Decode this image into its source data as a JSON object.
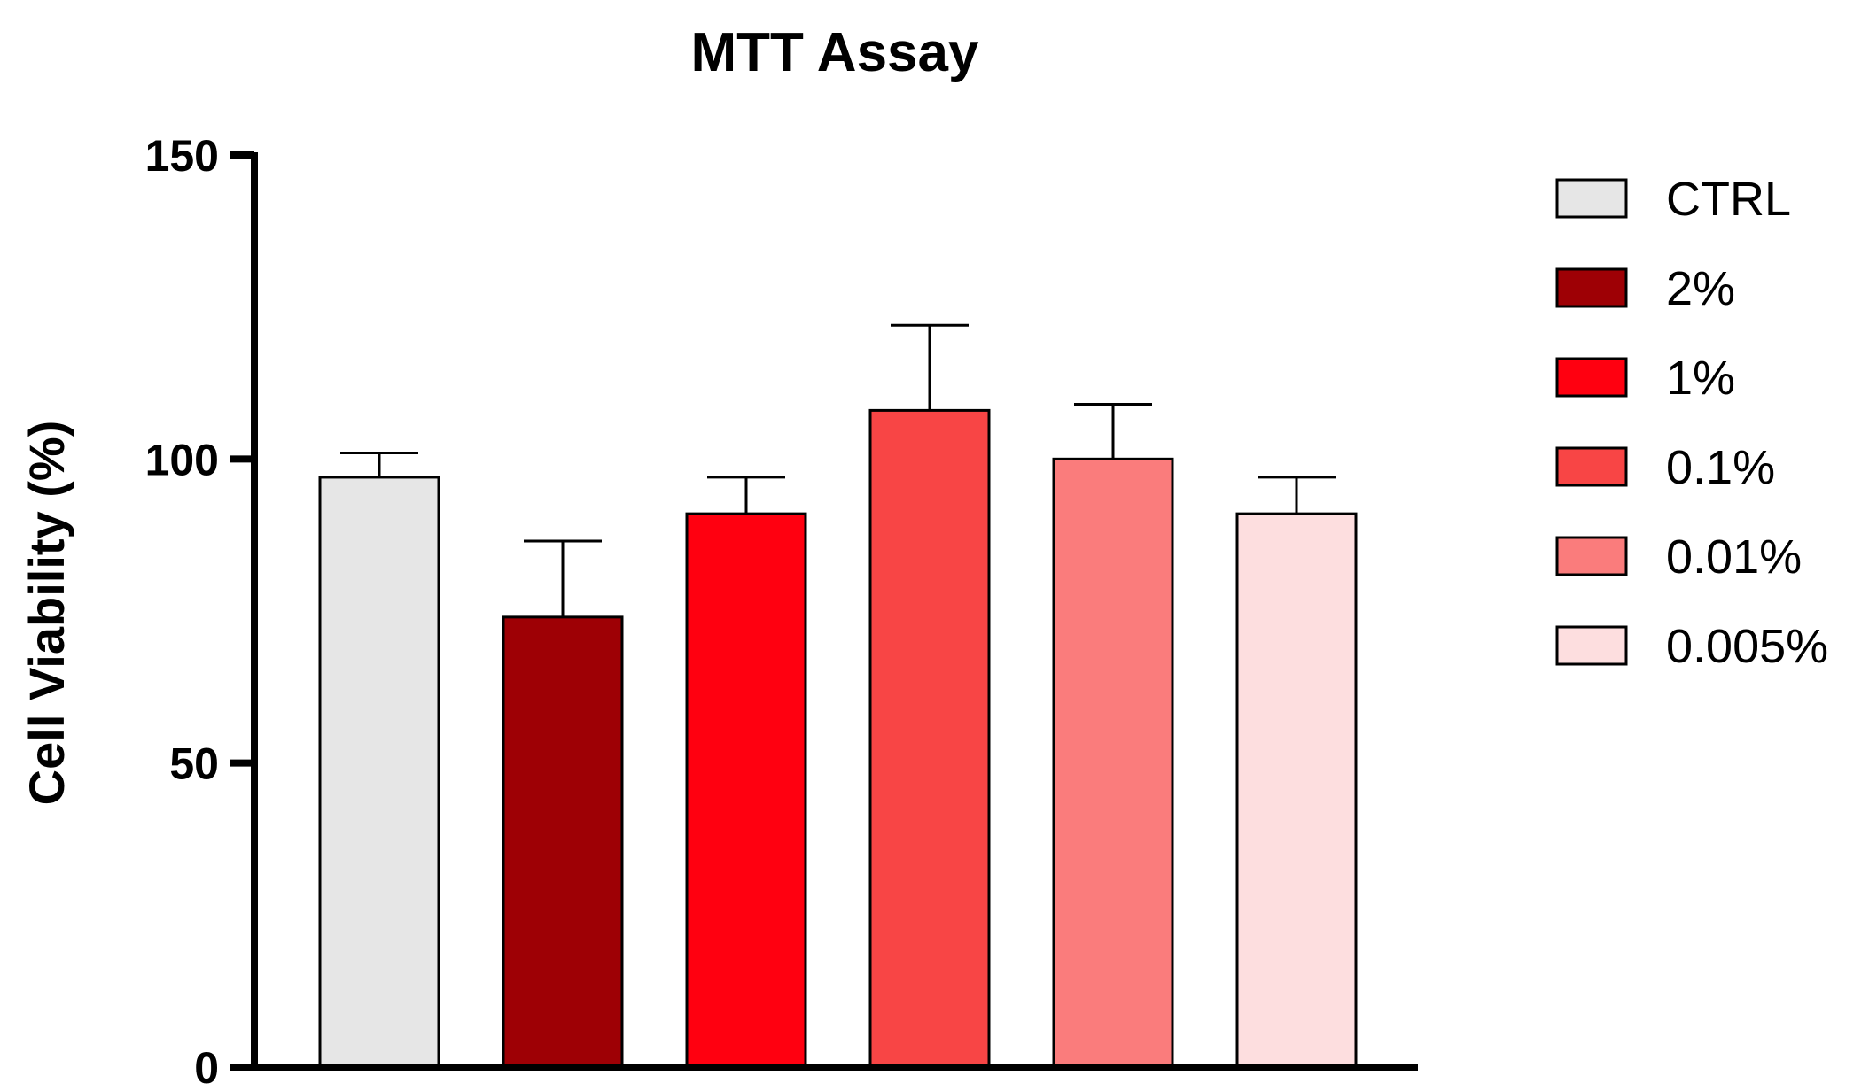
{
  "chart_data": {
    "type": "bar",
    "title": "MTT Assay",
    "xlabel": "",
    "ylabel": "Cell Viability (%)",
    "ylim": [
      0,
      150
    ],
    "yticks": [
      "0",
      "50",
      "100",
      "150"
    ],
    "grid": false,
    "legend_position": "right",
    "categories": [
      "CTRL",
      "2%",
      "1%",
      "0.1%",
      "0.01%",
      "0.005%"
    ],
    "values": [
      97,
      74,
      91,
      108,
      100,
      91
    ],
    "errors": [
      4,
      12.5,
      6,
      14,
      9,
      6
    ],
    "colors": [
      "#E6E6E6",
      "#9E0005",
      "#FF0010",
      "#F84545",
      "#FA7C7C",
      "#FDDEDF"
    ]
  }
}
